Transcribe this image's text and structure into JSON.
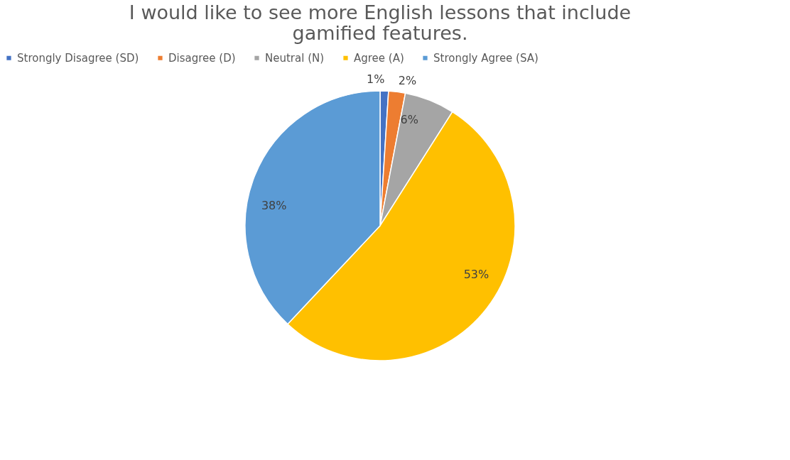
{
  "chart_data": {
    "type": "pie",
    "title": "I would like to see more English lessons that include gamified features.",
    "categories": [
      "Strongly Disagree (SD)",
      "Disagree (D)",
      "Neutral (N)",
      "Agree (A)",
      "Strongly Agree (SA)"
    ],
    "values": [
      1,
      2,
      6,
      53,
      38
    ],
    "colors": [
      "#4472c4",
      "#ed7d31",
      "#a5a5a5",
      "#ffc000",
      "#5b9bd5"
    ],
    "value_labels": [
      "1%",
      "2%",
      "6%",
      "53%",
      "38%"
    ],
    "legend": "top"
  }
}
